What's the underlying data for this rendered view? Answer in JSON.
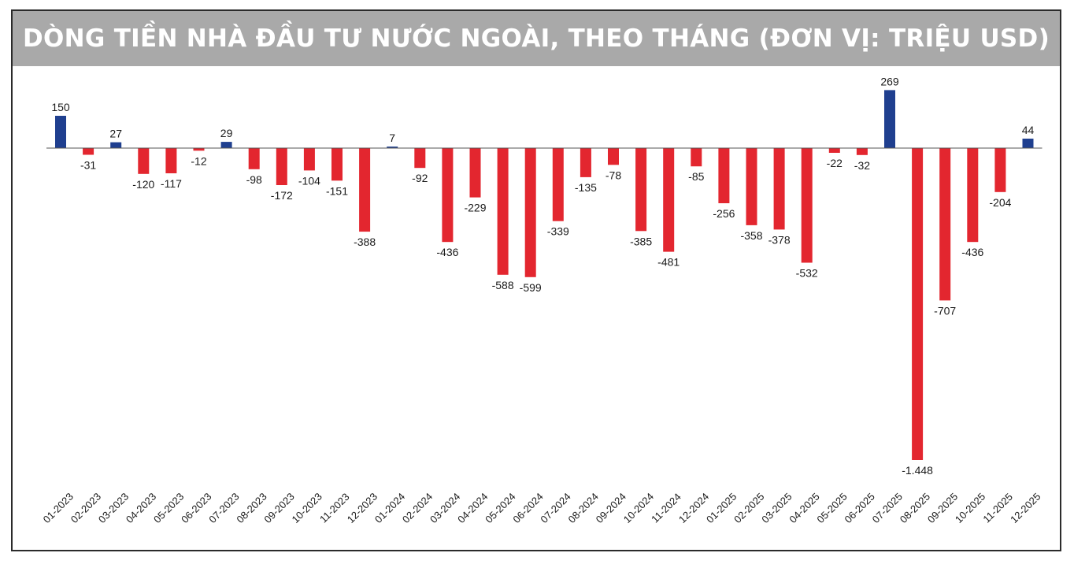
{
  "chart_data": {
    "type": "bar",
    "title": "DÒNG TIỀN NHÀ ĐẦU TƯ NƯỚC NGOÀI, THEO THÁNG (ĐƠN VỊ: TRIỆU USD)",
    "xlabel": "",
    "ylabel": "",
    "ylim": [
      -1448,
      269
    ],
    "grid": false,
    "legend": "none",
    "colors": {
      "positive": "#1f3f8f",
      "negative": "#e3262f"
    },
    "categories": [
      "01-2023",
      "02-2023",
      "03-2023",
      "04-2023",
      "05-2023",
      "06-2023",
      "07-2023",
      "08-2023",
      "09-2023",
      "10-2023",
      "11-2023",
      "12-2023",
      "01-2024",
      "02-2024",
      "03-2024",
      "04-2024",
      "05-2024",
      "06-2024",
      "07-2024",
      "08-2024",
      "09-2024",
      "10-2024",
      "11-2024",
      "12-2024",
      "01-2025",
      "02-2025",
      "03-2025",
      "04-2025",
      "05-2025",
      "06-2025",
      "07-2025",
      "08-2025",
      "09-2025",
      "10-2025",
      "11-2025",
      "12-2025"
    ],
    "values": [
      150,
      -31,
      27,
      -120,
      -117,
      -12,
      29,
      -98,
      -172,
      -104,
      -151,
      -388,
      7,
      -92,
      -436,
      -229,
      -588,
      -599,
      -339,
      -135,
      -78,
      -385,
      -481,
      -85,
      -256,
      -358,
      -378,
      -532,
      -22,
      -32,
      269,
      -1448,
      -707,
      -436,
      -204,
      44
    ],
    "labels": [
      "150",
      "-31",
      "27",
      "-120",
      "-117",
      "-12",
      "29",
      "-98",
      "-172",
      "-104",
      "-151",
      "-388",
      "7",
      "-92",
      "-436",
      "-229",
      "-588",
      "-599",
      "-339",
      "-135",
      "-78",
      "-385",
      "-481",
      "-85",
      "-256",
      "-358",
      "-378",
      "-532",
      "-22",
      "-32",
      "269",
      "-1.448",
      "-707",
      "-436",
      "-204",
      "44"
    ]
  }
}
